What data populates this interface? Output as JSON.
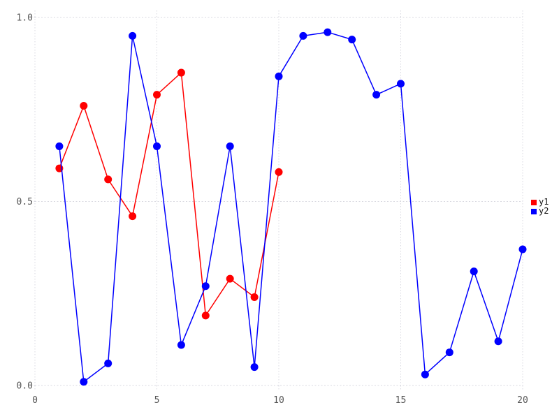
{
  "chart_data": {
    "type": "line",
    "title": "",
    "xlabel": "",
    "ylabel": "",
    "xlim": [
      0,
      20
    ],
    "ylim": [
      0.0,
      1.0
    ],
    "x_ticks": [
      0,
      5,
      10,
      15,
      20
    ],
    "x_tick_labels": [
      "0",
      "5",
      "10",
      "15",
      "20"
    ],
    "y_ticks": [
      0.0,
      0.5,
      1.0
    ],
    "y_tick_labels": [
      "0.0",
      "0.5",
      "1.0"
    ],
    "grid": true,
    "grid_style": "dotted",
    "legend_position": "right-outside",
    "series": [
      {
        "name": "y1",
        "color": "#ff0000",
        "marker": "circle",
        "x": [
          1,
          2,
          3,
          4,
          5,
          6,
          7,
          8,
          9,
          10
        ],
        "values": [
          0.59,
          0.76,
          0.56,
          0.46,
          0.79,
          0.85,
          0.19,
          0.29,
          0.24,
          0.58
        ]
      },
      {
        "name": "y2",
        "color": "#0000ff",
        "marker": "circle",
        "x": [
          1,
          2,
          3,
          4,
          5,
          6,
          7,
          8,
          9,
          10,
          11,
          12,
          13,
          14,
          15,
          16,
          17,
          18,
          19,
          20
        ],
        "values": [
          0.65,
          0.01,
          0.06,
          0.95,
          0.65,
          0.11,
          0.27,
          0.65,
          0.05,
          0.84,
          0.95,
          0.96,
          0.94,
          0.79,
          0.82,
          0.03,
          0.09,
          0.31,
          0.12,
          0.37
        ]
      }
    ]
  },
  "colors": {
    "background": "#ffffff",
    "grid": "#d8d8e0",
    "tick_text": "#555555",
    "legend_text": "#111111",
    "series_y1": "#ff0000",
    "series_y2": "#0000ff"
  }
}
